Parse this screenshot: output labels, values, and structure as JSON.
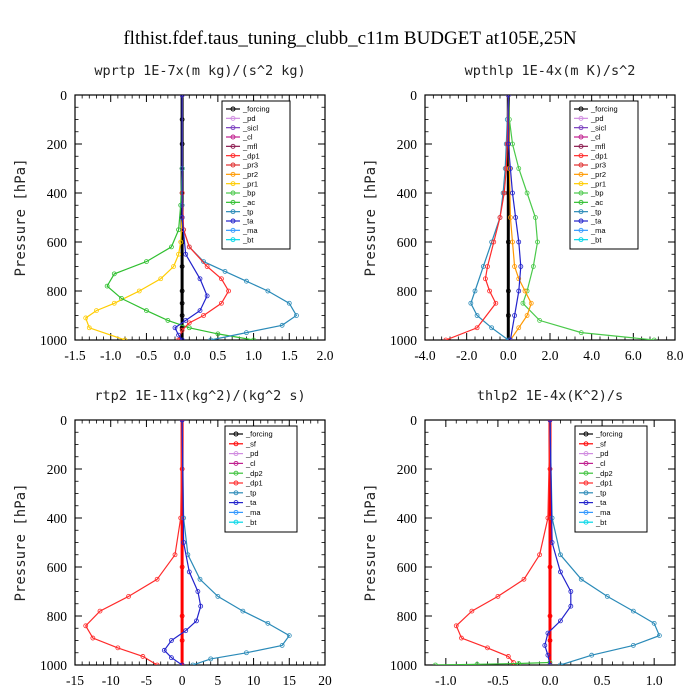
{
  "title": "flthist.fdef.taus_tuning_clubb_c11m  BUDGET at105E,25N",
  "colors": {
    "_forcing": "#000000",
    "_pd": "#d08ce0",
    "_sicl": "#7a3fbf",
    "_cl": "#c0208f",
    "_mfl": "#8b1a4f",
    "_dp1": "#ff2a2a",
    "_pr3": "#e03030",
    "_pr2": "#ff9900",
    "_pr1": "#ffcc00",
    "_bp": "#4ac94a",
    "_ac": "#2fbf2f",
    "_tp": "#2a8ab8",
    "_ta": "#2222cc",
    "_ma": "#3399ff",
    "_bt": "#00d7e8",
    "_sf": "#ff0000",
    "_dp2": "#39c139"
  },
  "chart_data": [
    {
      "type": "line",
      "title": "wprtp   1E-7x(m kg)/(s^2 kg)",
      "ylabel": "Pressure [hPa]",
      "xlim": [
        -1.5,
        2.0
      ],
      "ylim": [
        1000,
        0
      ],
      "xticks": [
        "-1.5",
        "-1.0",
        "-0.5",
        "0.0",
        "0.5",
        "1.0",
        "1.5",
        "2.0"
      ],
      "xtick_values": [
        -1.5,
        -1.0,
        -0.5,
        0.0,
        0.5,
        1.0,
        1.5,
        2.0
      ],
      "yticks": [
        "0",
        "200",
        "400",
        "600",
        "800",
        "1000"
      ],
      "ytick_values": [
        0,
        200,
        400,
        600,
        800,
        1000
      ],
      "legend": [
        "_forcing",
        "_pd",
        "_sicl",
        "_cl",
        "_mfl",
        "_dp1",
        "_pr3",
        "_pr2",
        "_pr1",
        "_bp",
        "_ac",
        "_tp",
        "_ta",
        "_ma",
        "_bt"
      ],
      "series": [
        {
          "name": "_forcing",
          "x": [
            0,
            0,
            0,
            0,
            0,
            0,
            0,
            0,
            0,
            0,
            0,
            0,
            0
          ],
          "y": [
            0,
            100,
            200,
            300,
            400,
            500,
            600,
            700,
            800,
            850,
            900,
            950,
            1000
          ]
        },
        {
          "name": "_pr1",
          "x": [
            0,
            0,
            0,
            -0.02,
            -0.05,
            -0.12,
            -0.3,
            -0.6,
            -0.95,
            -1.2,
            -1.35,
            -1.3,
            -0.8
          ],
          "y": [
            0,
            300,
            500,
            600,
            650,
            700,
            750,
            800,
            850,
            880,
            910,
            950,
            1000
          ]
        },
        {
          "name": "_ac",
          "x": [
            0,
            0,
            -0.02,
            -0.05,
            -0.15,
            -0.5,
            -0.95,
            -1.05,
            -0.85,
            -0.5,
            -0.2,
            0.1,
            0.5,
            1.0
          ],
          "y": [
            0,
            300,
            450,
            550,
            620,
            680,
            730,
            780,
            830,
            880,
            920,
            950,
            975,
            1000
          ]
        },
        {
          "name": "_tp",
          "x": [
            0,
            0,
            0,
            0.02,
            0.1,
            0.3,
            0.6,
            0.9,
            1.2,
            1.5,
            1.6,
            1.4,
            0.9,
            0.4
          ],
          "y": [
            0,
            300,
            450,
            550,
            620,
            680,
            720,
            760,
            800,
            850,
            900,
            940,
            970,
            1000
          ]
        },
        {
          "name": "_dp1",
          "x": [
            0,
            0,
            0.02,
            0.1,
            0.35,
            0.55,
            0.65,
            0.55,
            0.3,
            0.1,
            0,
            -0.05
          ],
          "y": [
            0,
            400,
            550,
            620,
            700,
            750,
            800,
            850,
            900,
            930,
            960,
            1000
          ]
        },
        {
          "name": "_ta",
          "x": [
            0,
            0,
            0.05,
            0.25,
            0.35,
            0.25,
            0.05,
            -0.1,
            -0.05,
            0
          ],
          "y": [
            0,
            500,
            650,
            750,
            820,
            880,
            920,
            950,
            980,
            1000
          ]
        }
      ]
    },
    {
      "type": "line",
      "title": "wpthlp   1E-4x(m K)/s^2",
      "ylabel": "Pressure [hPa]",
      "xlim": [
        -4.0,
        8.0
      ],
      "ylim": [
        1000,
        0
      ],
      "xticks": [
        "-4.0",
        "-2.0",
        "0.0",
        "2.0",
        "4.0",
        "6.0",
        "8.0"
      ],
      "xtick_values": [
        -4.0,
        -2.0,
        0.0,
        2.0,
        4.0,
        6.0,
        8.0
      ],
      "yticks": [
        "0",
        "200",
        "400",
        "600",
        "800",
        "1000"
      ],
      "ytick_values": [
        0,
        200,
        400,
        600,
        800,
        1000
      ],
      "legend": [
        "_forcing",
        "_pd",
        "_sicl",
        "_cl",
        "_mfl",
        "_dp1",
        "_pr3",
        "_pr2",
        "_pr1",
        "_bp",
        "_ac",
        "_tp",
        "_ta",
        "_ma",
        "_bt"
      ],
      "series": [
        {
          "name": "_forcing",
          "x": [
            0,
            0,
            0,
            0,
            0,
            0,
            0
          ],
          "y": [
            0,
            200,
            400,
            600,
            800,
            900,
            1000
          ]
        },
        {
          "name": "_bp",
          "x": [
            0,
            0.05,
            0.2,
            0.5,
            0.9,
            1.3,
            1.4,
            1.2,
            0.9,
            0.7,
            1.5,
            3.5,
            7.0
          ],
          "y": [
            0,
            100,
            200,
            300,
            400,
            500,
            600,
            700,
            800,
            850,
            920,
            970,
            1000
          ]
        },
        {
          "name": "_tp",
          "x": [
            0,
            -0.05,
            -0.1,
            -0.15,
            -0.25,
            -0.4,
            -0.8,
            -1.2,
            -1.6,
            -1.8,
            -1.5,
            -0.8,
            0
          ],
          "y": [
            0,
            100,
            200,
            300,
            400,
            500,
            600,
            700,
            800,
            850,
            900,
            950,
            1000
          ]
        },
        {
          "name": "_dp1",
          "x": [
            0,
            -0.05,
            -0.1,
            -0.2,
            -0.4,
            -0.7,
            -1.0,
            -1.1,
            -0.9,
            -0.6,
            -1.5,
            -3.0
          ],
          "y": [
            0,
            200,
            300,
            400,
            500,
            600,
            700,
            750,
            800,
            850,
            950,
            1000
          ]
        },
        {
          "name": "_pr2",
          "x": [
            0,
            0.05,
            0.1,
            0.2,
            0.3,
            0.5,
            0.8,
            1.1,
            0.9,
            0.5,
            0.1
          ],
          "y": [
            0,
            300,
            500,
            600,
            700,
            750,
            800,
            850,
            900,
            950,
            1000
          ]
        },
        {
          "name": "_ta",
          "x": [
            0,
            0,
            0.1,
            0.2,
            0.35,
            0.5,
            0.6,
            0.5,
            0.3,
            0.1
          ],
          "y": [
            0,
            200,
            300,
            400,
            500,
            600,
            700,
            800,
            900,
            1000
          ]
        }
      ]
    },
    {
      "type": "line",
      "title": "rtp2   1E-11x(kg^2)/(kg^2 s)",
      "ylabel": "Pressure [hPa]",
      "xlim": [
        -15,
        20
      ],
      "ylim": [
        1000,
        0
      ],
      "xticks": [
        "-15",
        "-10",
        "-5",
        "0",
        "5",
        "10",
        "15",
        "20"
      ],
      "xtick_values": [
        -15,
        -10,
        -5,
        0,
        5,
        10,
        15,
        20
      ],
      "yticks": [
        "0",
        "200",
        "400",
        "600",
        "800",
        "1000"
      ],
      "ytick_values": [
        0,
        200,
        400,
        600,
        800,
        1000
      ],
      "legend": [
        "_forcing",
        "_sf",
        "_pd",
        "_cl",
        "_dp2",
        "_dp1",
        "_tp",
        "_ta",
        "_ma",
        "_bt"
      ],
      "series": [
        {
          "name": "_sf",
          "x": [
            0,
            0,
            0,
            0,
            0,
            0,
            0
          ],
          "y": [
            0,
            200,
            400,
            600,
            800,
            900,
            1000
          ]
        },
        {
          "name": "_dp1",
          "x": [
            0,
            -0.2,
            -1.0,
            -3.5,
            -7.5,
            -11.5,
            -13.5,
            -12.5,
            -9.0,
            -5.5,
            -3.5
          ],
          "y": [
            0,
            400,
            550,
            650,
            720,
            780,
            840,
            890,
            930,
            965,
            1000
          ]
        },
        {
          "name": "_tp",
          "x": [
            0,
            0.2,
            0.8,
            2.5,
            5.0,
            8.5,
            12.0,
            15.0,
            14.0,
            9.0,
            4.0,
            1.5
          ],
          "y": [
            0,
            400,
            550,
            650,
            720,
            780,
            830,
            880,
            920,
            950,
            975,
            1000
          ]
        },
        {
          "name": "_ta",
          "x": [
            0,
            0.2,
            1.0,
            2.2,
            2.6,
            2.0,
            0.5,
            -1.5,
            -2.5,
            -1.5,
            0
          ],
          "y": [
            0,
            500,
            620,
            700,
            760,
            820,
            860,
            900,
            940,
            970,
            1000
          ]
        }
      ]
    },
    {
      "type": "line",
      "title": "thlp2   1E-4x(K^2)/s",
      "ylabel": "Pressure [hPa]",
      "xlim": [
        -1.2,
        1.2
      ],
      "ylim": [
        1000,
        0
      ],
      "xticks": [
        "-1.0",
        "-0.5",
        "0.0",
        "0.5",
        "1.0"
      ],
      "xtick_values": [
        -1.0,
        -0.5,
        0.0,
        0.5,
        1.0
      ],
      "yticks": [
        "0",
        "200",
        "400",
        "600",
        "800",
        "1000"
      ],
      "ytick_values": [
        0,
        200,
        400,
        600,
        800,
        1000
      ],
      "legend": [
        "_forcing",
        "_sf",
        "_pd",
        "_cl",
        "_dp2",
        "_dp1",
        "_tp",
        "_ta",
        "_ma",
        "_bt"
      ],
      "series": [
        {
          "name": "_sf",
          "x": [
            0,
            0,
            0,
            0,
            0,
            0,
            0
          ],
          "y": [
            0,
            200,
            400,
            600,
            800,
            900,
            1000
          ]
        },
        {
          "name": "_dp1",
          "x": [
            0,
            -0.02,
            -0.1,
            -0.25,
            -0.5,
            -0.75,
            -0.9,
            -0.85,
            -0.6,
            -0.4,
            -0.35
          ],
          "y": [
            0,
            400,
            550,
            650,
            720,
            780,
            840,
            890,
            930,
            965,
            990
          ]
        },
        {
          "name": "_dp2",
          "x": [
            0,
            -0.3,
            -0.7,
            -1.1
          ],
          "y": [
            990,
            994,
            997,
            1000
          ]
        },
        {
          "name": "_tp",
          "x": [
            0,
            0.02,
            0.1,
            0.3,
            0.55,
            0.8,
            1.0,
            1.05,
            0.8,
            0.4,
            0.1
          ],
          "y": [
            0,
            400,
            550,
            650,
            720,
            780,
            830,
            880,
            920,
            960,
            1000
          ]
        },
        {
          "name": "_ta",
          "x": [
            0,
            0.02,
            0.1,
            0.2,
            0.2,
            0.1,
            -0.02,
            -0.05,
            -0.02,
            0
          ],
          "y": [
            0,
            500,
            620,
            700,
            760,
            820,
            870,
            920,
            960,
            1000
          ]
        }
      ]
    }
  ]
}
